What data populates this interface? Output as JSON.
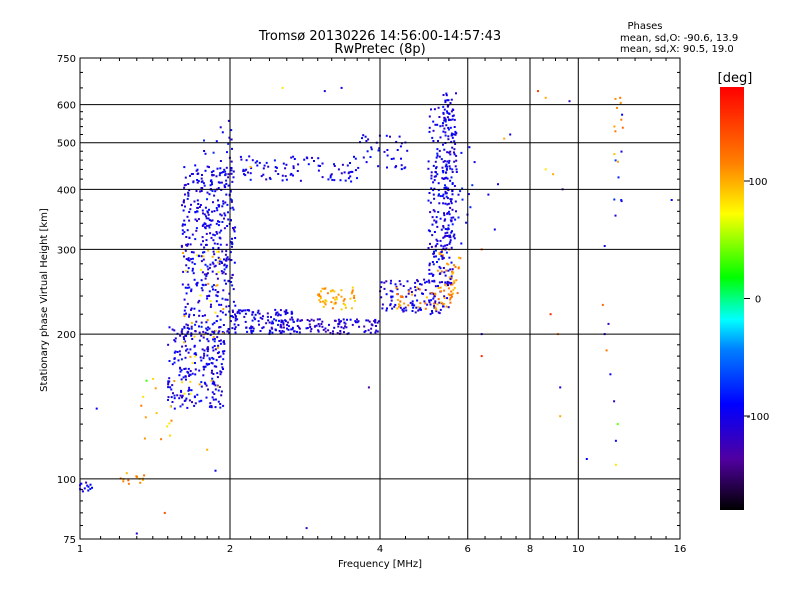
{
  "chart_data": {
    "type": "scatter",
    "title": "Tromsø 20130226 14:56:00-14:57:43",
    "subtitle": "RwPretec (8p)",
    "xlabel": "Frequency [MHz]",
    "ylabel": "Stationary phase Virtual Height [km]",
    "x_scale": "log",
    "y_scale": "log",
    "xlim": [
      1,
      16
    ],
    "ylim": [
      75,
      750
    ],
    "grid": true,
    "x_ticks": [
      1,
      2,
      4,
      6,
      8,
      10,
      16
    ],
    "y_ticks": [
      75,
      100,
      200,
      300,
      400,
      500,
      600,
      750
    ],
    "x_tick_labels": [
      "1",
      "2",
      "4",
      "6",
      "8",
      "10",
      "16"
    ],
    "y_tick_labels": [
      "75",
      "100",
      "200",
      "300",
      "400",
      "500",
      "600",
      "750"
    ],
    "stats_header": "Phases",
    "stats_lines": [
      "mean, sd,O: -90.6, 13.9",
      "mean, sd,X:  90.5, 19.0"
    ],
    "colorbar": {
      "label": "[deg]",
      "range": [
        -180,
        180
      ],
      "ticks": [
        100,
        0,
        -100
      ],
      "tick_labels": [
        "100",
        "0",
        "-100"
      ]
    },
    "clusters": [
      {
        "f": [
          1.5,
          1.95
        ],
        "h": [
          140,
          210
        ],
        "phase": -100,
        "n": 230
      },
      {
        "f": [
          1.6,
          2.05
        ],
        "h": [
          200,
          450
        ],
        "phase": -100,
        "n": 380
      },
      {
        "f": [
          1.75,
          2.05
        ],
        "h": [
          280,
          560
        ],
        "phase": -95,
        "n": 70
      },
      {
        "f": [
          1.6,
          2.0
        ],
        "h": [
          150,
          300
        ],
        "phase": 90,
        "n": 40
      },
      {
        "f": [
          2.0,
          2.7
        ],
        "h": [
          200,
          225
        ],
        "phase": -100,
        "n": 120
      },
      {
        "f": [
          2.4,
          4.0
        ],
        "h": [
          200,
          215
        ],
        "phase": -110,
        "n": 110
      },
      {
        "f": [
          4.0,
          5.5
        ],
        "h": [
          220,
          260
        ],
        "phase": -105,
        "n": 110
      },
      {
        "f": [
          3.0,
          3.6
        ],
        "h": [
          225,
          250
        ],
        "phase": 100,
        "n": 50
      },
      {
        "f": [
          4.2,
          5.6
        ],
        "h": [
          225,
          250
        ],
        "phase": 110,
        "n": 45
      },
      {
        "f": [
          5.2,
          5.8
        ],
        "h": [
          240,
          300
        ],
        "phase": 110,
        "n": 40
      },
      {
        "f": [
          5.0,
          5.6
        ],
        "h": [
          250,
          600
        ],
        "phase": -100,
        "n": 200
      },
      {
        "f": [
          5.35,
          5.7
        ],
        "h": [
          300,
          640
        ],
        "phase": -100,
        "n": 120
      },
      {
        "f": [
          2.1,
          3.6
        ],
        "h": [
          415,
          470
        ],
        "phase": -100,
        "n": 90
      },
      {
        "f": [
          3.6,
          4.6
        ],
        "h": [
          440,
          520
        ],
        "phase": -100,
        "n": 40
      },
      {
        "f": [
          1.0,
          1.06
        ],
        "h": [
          94,
          99
        ],
        "phase": -100,
        "n": 12
      },
      {
        "f": [
          1.2,
          1.4
        ],
        "h": [
          97,
          103
        ],
        "phase": 110,
        "n": 14
      },
      {
        "f": [
          1.32,
          1.55
        ],
        "h": [
          120,
          165
        ],
        "phase": 100,
        "n": 14
      },
      {
        "f": [
          5.7,
          6.2
        ],
        "h": [
          300,
          560
        ],
        "phase": -90,
        "n": 15
      },
      {
        "f": [
          11.8,
          12.3
        ],
        "h": [
          450,
          640
        ],
        "phase": 110,
        "n": 10
      },
      {
        "f": [
          11.8,
          12.3
        ],
        "h": [
          300,
          600
        ],
        "phase": -90,
        "n": 8
      }
    ],
    "scatter_points": [
      [
        1.0,
        97,
        -100
      ],
      [
        1.08,
        140,
        -90
      ],
      [
        1.36,
        160,
        30
      ],
      [
        1.48,
        85,
        140
      ],
      [
        1.55,
        140,
        -100
      ],
      [
        1.8,
        115,
        100
      ],
      [
        1.87,
        104,
        -100
      ],
      [
        1.3,
        77,
        -110
      ],
      [
        2.2,
        445,
        100
      ],
      [
        2.55,
        650,
        80
      ],
      [
        3.1,
        640,
        -100
      ],
      [
        3.35,
        650,
        -100
      ],
      [
        2.85,
        79,
        -120
      ],
      [
        3.8,
        155,
        -130
      ],
      [
        6.4,
        200,
        -100
      ],
      [
        6.4,
        180,
        160
      ],
      [
        6.4,
        300,
        130
      ],
      [
        6.6,
        390,
        -100
      ],
      [
        6.9,
        410,
        -100
      ],
      [
        6.8,
        330,
        -100
      ],
      [
        7.1,
        510,
        100
      ],
      [
        7.3,
        520,
        -100
      ],
      [
        8.3,
        640,
        150
      ],
      [
        8.6,
        620,
        100
      ],
      [
        8.6,
        440,
        80
      ],
      [
        8.9,
        430,
        100
      ],
      [
        8.8,
        220,
        160
      ],
      [
        9.1,
        200,
        120
      ],
      [
        9.2,
        155,
        -100
      ],
      [
        9.2,
        135,
        100
      ],
      [
        9.6,
        610,
        -120
      ],
      [
        9.3,
        400,
        -130
      ],
      [
        10.4,
        110,
        -90
      ],
      [
        11.2,
        230,
        130
      ],
      [
        11.3,
        305,
        -100
      ],
      [
        11.4,
        185,
        120
      ],
      [
        11.3,
        200,
        -100
      ],
      [
        11.5,
        210,
        -120
      ],
      [
        11.6,
        165,
        -100
      ],
      [
        11.8,
        145,
        -120
      ],
      [
        11.9,
        107,
        80
      ],
      [
        11.9,
        120,
        -100
      ],
      [
        12.0,
        130,
        40
      ],
      [
        15.4,
        380,
        -90
      ],
      [
        5.7,
        440,
        -100
      ]
    ]
  }
}
